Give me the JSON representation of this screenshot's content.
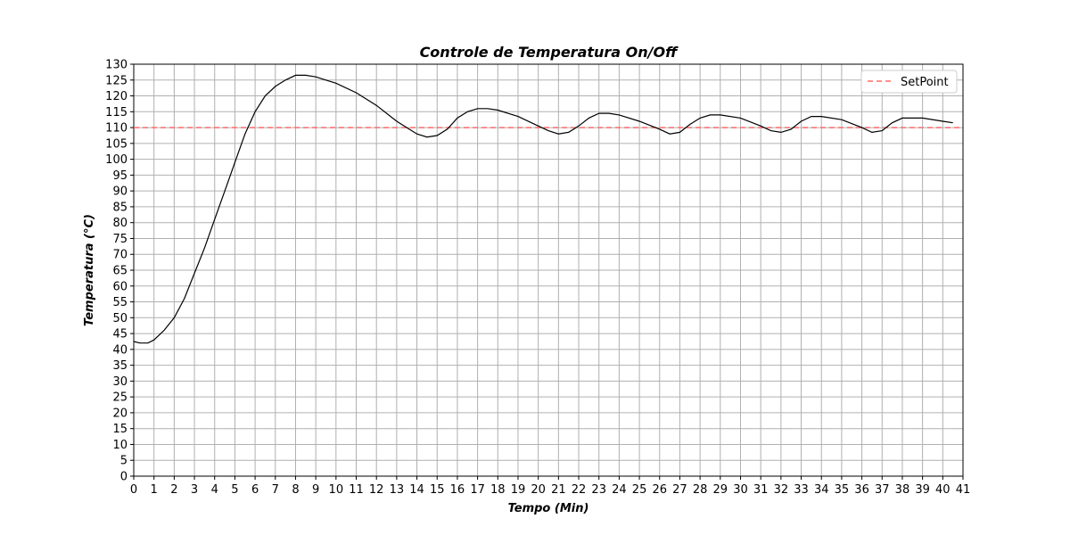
{
  "chart_data": {
    "type": "line",
    "title": "Controle de Temperatura On/Off",
    "xlabel": "Tempo (Min)",
    "ylabel": "Temperatura (°C)",
    "xlim": [
      0,
      41
    ],
    "ylim": [
      0,
      130
    ],
    "x_ticks": [
      0,
      1,
      2,
      3,
      4,
      5,
      6,
      7,
      8,
      9,
      10,
      11,
      12,
      13,
      14,
      15,
      16,
      17,
      18,
      19,
      20,
      21,
      22,
      23,
      24,
      25,
      26,
      27,
      28,
      29,
      30,
      31,
      32,
      33,
      34,
      35,
      36,
      37,
      38,
      39,
      40,
      41
    ],
    "y_ticks": [
      0,
      5,
      10,
      15,
      20,
      25,
      30,
      35,
      40,
      45,
      50,
      55,
      60,
      65,
      70,
      75,
      80,
      85,
      90,
      95,
      100,
      105,
      110,
      115,
      120,
      125,
      130
    ],
    "grid": true,
    "legend": {
      "placement": "top-right",
      "entries": [
        "SetPoint"
      ]
    },
    "series": [
      {
        "name": "",
        "color": "#000000",
        "x": [
          0,
          0.3,
          0.7,
          1.0,
          1.5,
          2.0,
          2.5,
          3.0,
          3.5,
          4.0,
          4.5,
          5.0,
          5.5,
          6.0,
          6.5,
          7.0,
          7.5,
          8.0,
          8.5,
          9.0,
          9.5,
          10.0,
          11.0,
          12.0,
          13.0,
          13.5,
          14.0,
          14.5,
          15.0,
          15.5,
          16.0,
          16.5,
          17.0,
          17.5,
          18.0,
          19.0,
          20.0,
          20.5,
          21.0,
          21.5,
          22.0,
          22.5,
          23.0,
          23.5,
          24.0,
          25.0,
          26.0,
          26.5,
          27.0,
          27.5,
          28.0,
          28.5,
          29.0,
          30.0,
          31.0,
          31.5,
          32.0,
          32.5,
          33.0,
          33.5,
          34.0,
          35.0,
          36.0,
          36.5,
          37.0,
          37.5,
          38.0,
          38.5,
          39.0,
          40.0,
          40.5
        ],
        "y": [
          42.5,
          42.0,
          42.0,
          43.0,
          46.0,
          50.0,
          56.0,
          64.0,
          72.0,
          81.0,
          90.0,
          99.0,
          108.0,
          115.0,
          120.0,
          123.0,
          125.0,
          126.5,
          126.5,
          126.0,
          125.0,
          124.0,
          121.0,
          117.0,
          112.0,
          110.0,
          108.0,
          107.0,
          107.5,
          109.5,
          113.0,
          115.0,
          116.0,
          116.0,
          115.5,
          113.5,
          110.5,
          109.0,
          108.0,
          108.5,
          110.5,
          113.0,
          114.5,
          114.5,
          114.0,
          112.0,
          109.5,
          108.0,
          108.5,
          111.0,
          113.0,
          114.0,
          114.0,
          113.0,
          110.5,
          109.0,
          108.5,
          109.5,
          112.0,
          113.5,
          113.5,
          112.5,
          110.0,
          108.5,
          109.0,
          111.5,
          113.0,
          113.0,
          113.0,
          112.0,
          111.5
        ]
      }
    ],
    "reference_lines": [
      {
        "name": "SetPoint",
        "y": 110,
        "color": "#ff6b6b",
        "style": "dashed"
      }
    ]
  }
}
